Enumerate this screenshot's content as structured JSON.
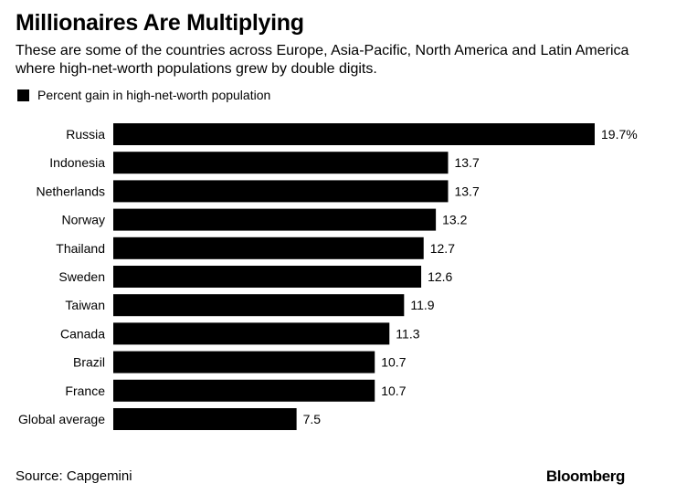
{
  "title": "Millionaires Are Multiplying",
  "subtitle": "These are some of the countries across Europe, Asia-Pacific, North America and Latin America where high-net-worth populations grew by double digits.",
  "legend_label": "Percent gain in high-net-worth population",
  "source": "Source: Capgemini",
  "logo": "Bloomberg",
  "colors": {
    "bar": "#000000",
    "background": "#ffffff"
  },
  "chart_data": {
    "type": "bar",
    "orientation": "horizontal",
    "categories": [
      "Russia",
      "Indonesia",
      "Netherlands",
      "Norway",
      "Thailand",
      "Sweden",
      "Taiwan",
      "Canada",
      "Brazil",
      "France",
      "Global average"
    ],
    "series": [
      {
        "name": "Percent gain in high-net-worth population",
        "values": [
          19.7,
          13.7,
          13.7,
          13.2,
          12.7,
          12.6,
          11.9,
          11.3,
          10.7,
          10.7,
          7.5
        ]
      }
    ],
    "value_labels": [
      "19.7%",
      "13.7",
      "13.7",
      "13.2",
      "12.7",
      "12.6",
      "11.9",
      "11.3",
      "10.7",
      "10.7",
      "7.5"
    ],
    "xlim": [
      0,
      19.7
    ],
    "grid": false,
    "legend_position": "top-left"
  }
}
